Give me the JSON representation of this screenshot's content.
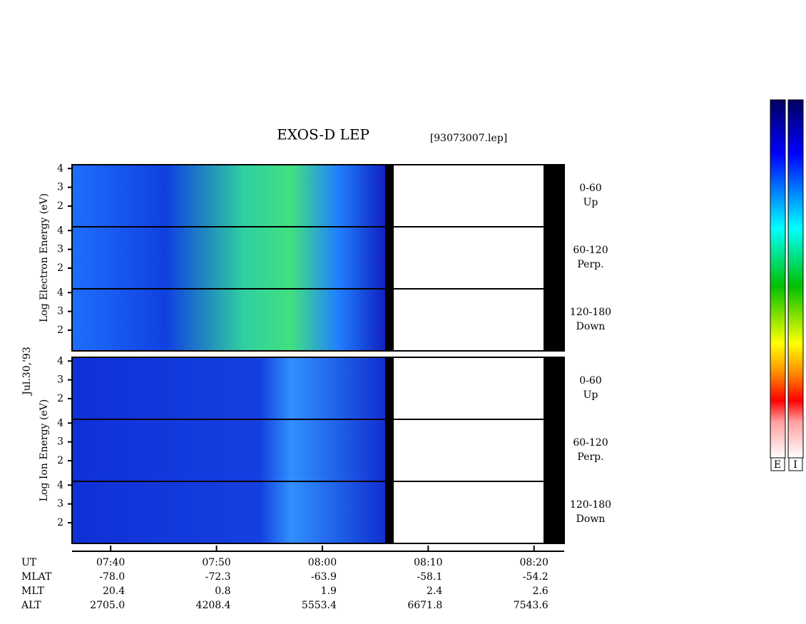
{
  "header": {
    "title": "EXOS-D LEP",
    "file": "[93073007.lep]",
    "date": "Jul.30,'93"
  },
  "chart_data": {
    "type": "spectrogram",
    "xlim": [
      36.35,
      82.85
    ],
    "xticks": [
      {
        "value": 40,
        "label": "07:40"
      },
      {
        "value": 50,
        "label": "07:50"
      },
      {
        "value": 60,
        "label": "08:00"
      },
      {
        "value": 70,
        "label": "08:10"
      },
      {
        "value": 80,
        "label": "08:20"
      }
    ],
    "ylim": [
      0.9,
      4.2
    ],
    "yticks": [
      2,
      3,
      4
    ],
    "panels": [
      {
        "label": "Log Electron Energy (eV)",
        "channels": [
          {
            "angle": "0-60",
            "dir": "Up"
          },
          {
            "angle": "60-120",
            "dir": "Perp."
          },
          {
            "angle": "120-180",
            "dir": "Down"
          }
        ]
      },
      {
        "label": "Log Ion Energy (eV)",
        "channels": [
          {
            "angle": "0-60",
            "dir": "Up"
          },
          {
            "angle": "60-120",
            "dir": "Perp."
          },
          {
            "angle": "120-180",
            "dir": "Down"
          }
        ]
      }
    ]
  },
  "ephemeris": {
    "labels": [
      "UT",
      "MLAT",
      "MLT",
      "ALT"
    ],
    "rows": [
      [
        "-78.0",
        "-72.3",
        "-63.9",
        "-58.1",
        "-54.2"
      ],
      [
        "20.4",
        "0.8",
        "1.9",
        "2.4",
        "2.6"
      ],
      [
        "2705.0",
        "4208.4",
        "5553.4",
        "6671.8",
        "7543.6"
      ]
    ]
  },
  "colorbar": {
    "labels": [
      "E",
      "I"
    ]
  }
}
